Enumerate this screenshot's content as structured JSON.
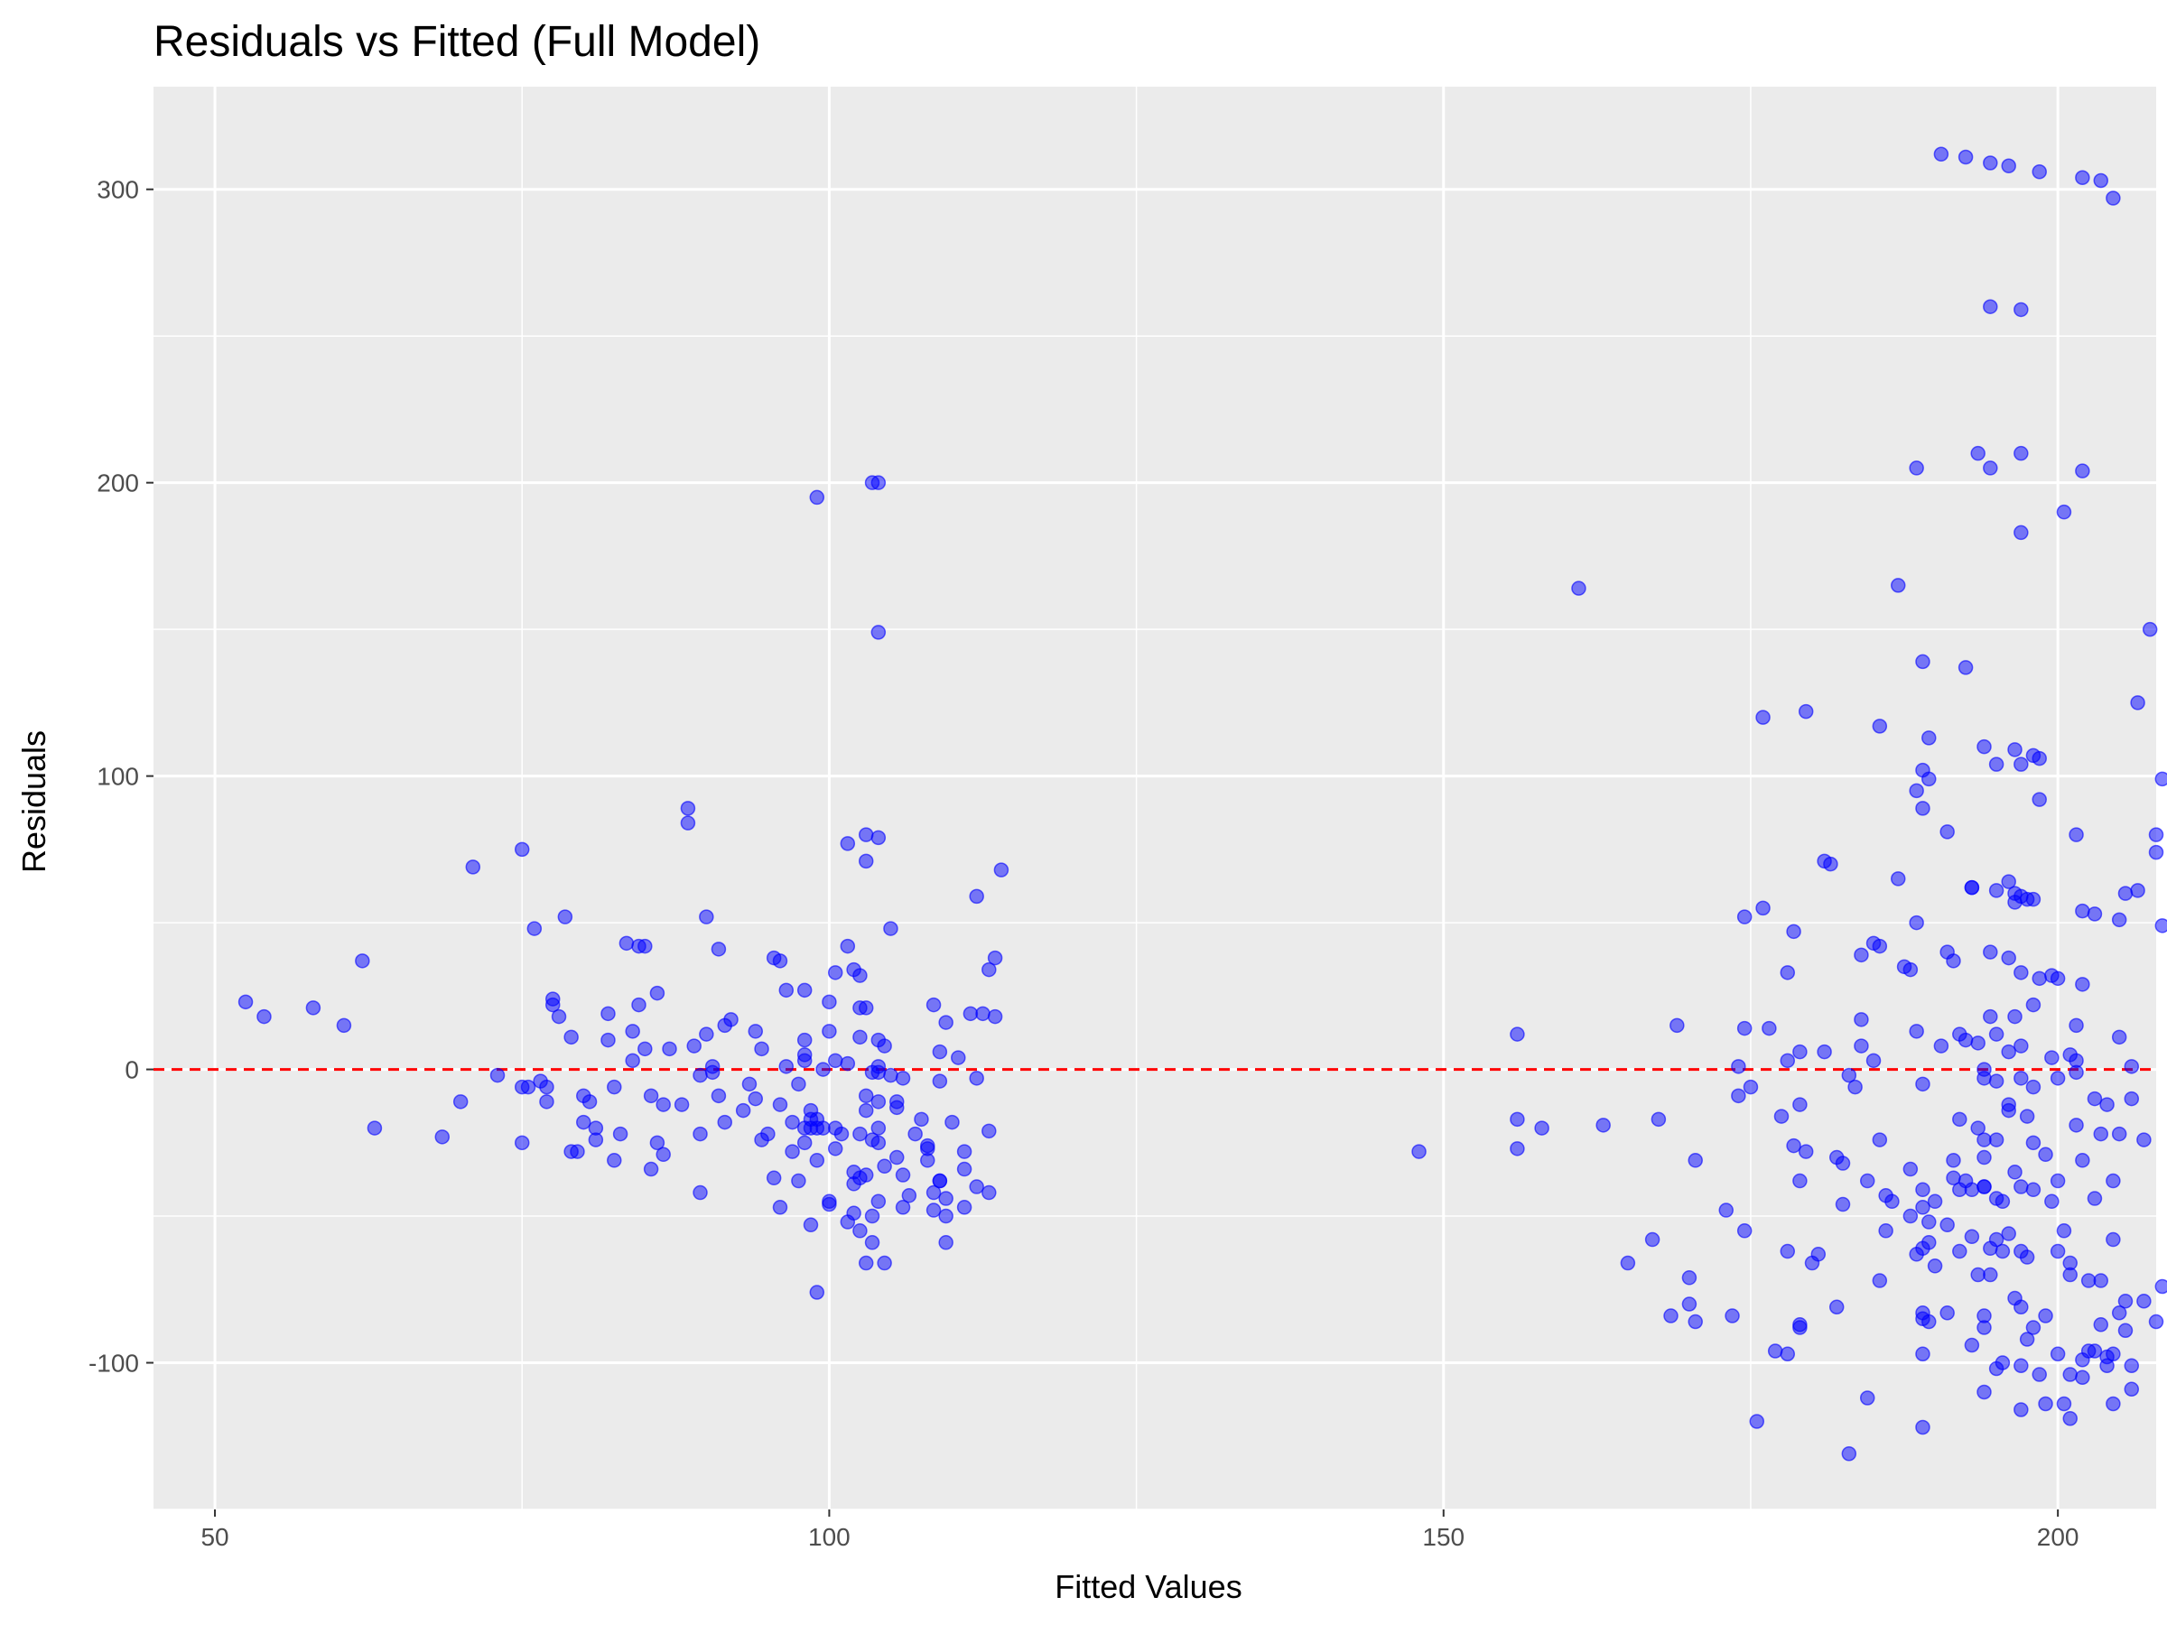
{
  "chart_data": {
    "type": "scatter",
    "title": "Residuals vs Fitted (Full Model)",
    "xlabel": "Fitted Values",
    "ylabel": "Residuals",
    "xlim": [
      45,
      208
    ],
    "ylim": [
      -150,
      335
    ],
    "x_ticks": [
      50,
      100,
      150,
      200
    ],
    "x_tick_labels": [
      "50",
      "100",
      "150",
      "200"
    ],
    "y_ticks": [
      -100,
      0,
      100,
      200,
      300
    ],
    "y_tick_labels": [
      "-100",
      "0",
      "100",
      "200",
      "300"
    ],
    "grid": true,
    "reference_line": {
      "y": 0,
      "style": "dashed",
      "color": "#ff0000"
    },
    "colors": {
      "panel": "#ebebeb",
      "grid": "#ffffff",
      "points": "#0000ff"
    },
    "points": [
      [
        52.5,
        23
      ],
      [
        54,
        18
      ],
      [
        58,
        21
      ],
      [
        60.5,
        15
      ],
      [
        62,
        37
      ],
      [
        63,
        -20
      ],
      [
        68.5,
        -23
      ],
      [
        70,
        -11
      ],
      [
        71,
        69
      ],
      [
        73,
        -2
      ],
      [
        75,
        75
      ],
      [
        75,
        -6
      ],
      [
        75,
        -25
      ],
      [
        75.5,
        -6
      ],
      [
        76,
        48
      ],
      [
        76.5,
        -4
      ],
      [
        77,
        -6
      ],
      [
        77,
        -11
      ],
      [
        77.5,
        22
      ],
      [
        77.5,
        24
      ],
      [
        78,
        18
      ],
      [
        78.5,
        52
      ],
      [
        79,
        11
      ],
      [
        79,
        -28
      ],
      [
        79.5,
        -28
      ],
      [
        80,
        -9
      ],
      [
        80,
        -18
      ],
      [
        80.5,
        -11
      ],
      [
        81,
        -24
      ],
      [
        81,
        -20
      ],
      [
        82,
        10
      ],
      [
        82,
        19
      ],
      [
        82.5,
        -31
      ],
      [
        82.5,
        -6
      ],
      [
        83,
        -22
      ],
      [
        83.5,
        43
      ],
      [
        84,
        13
      ],
      [
        84,
        3
      ],
      [
        84.5,
        22
      ],
      [
        84.5,
        42
      ],
      [
        85,
        7
      ],
      [
        85,
        42
      ],
      [
        85.5,
        -34
      ],
      [
        85.5,
        -9
      ],
      [
        86,
        26
      ],
      [
        86,
        -25
      ],
      [
        86.5,
        -12
      ],
      [
        86.5,
        -29
      ],
      [
        87,
        7
      ],
      [
        88,
        -12
      ],
      [
        88.5,
        89
      ],
      [
        88.5,
        84
      ],
      [
        89,
        8
      ],
      [
        89.5,
        -2
      ],
      [
        89.5,
        -42
      ],
      [
        89.5,
        -22
      ],
      [
        90,
        52
      ],
      [
        90,
        12
      ],
      [
        90.5,
        -1
      ],
      [
        90.5,
        1
      ],
      [
        91,
        41
      ],
      [
        91,
        -9
      ],
      [
        91.5,
        15
      ],
      [
        91.5,
        -18
      ],
      [
        92,
        17
      ],
      [
        93,
        -14
      ],
      [
        93.5,
        -5
      ],
      [
        94,
        13
      ],
      [
        94,
        -10
      ],
      [
        94.5,
        7
      ],
      [
        94.5,
        -24
      ],
      [
        95,
        -22
      ],
      [
        95.5,
        38
      ],
      [
        95.5,
        -37
      ],
      [
        96,
        37
      ],
      [
        96,
        -12
      ],
      [
        96,
        -47
      ],
      [
        96.5,
        27
      ],
      [
        96.5,
        1
      ],
      [
        97,
        -18
      ],
      [
        97,
        -28
      ],
      [
        97.5,
        -5
      ],
      [
        97.5,
        -38
      ],
      [
        98,
        27
      ],
      [
        98,
        10
      ],
      [
        98,
        5
      ],
      [
        98,
        3
      ],
      [
        98,
        -25
      ],
      [
        98,
        -20
      ],
      [
        98.5,
        -53
      ],
      [
        98.5,
        -14
      ],
      [
        98.5,
        -17
      ],
      [
        98.5,
        -20
      ],
      [
        99,
        195
      ],
      [
        99,
        -20
      ],
      [
        99,
        -17
      ],
      [
        99,
        -31
      ],
      [
        99,
        -76
      ],
      [
        99.5,
        0
      ],
      [
        99.5,
        -20
      ],
      [
        100,
        -45
      ],
      [
        100,
        -46
      ],
      [
        100,
        23
      ],
      [
        100,
        13
      ],
      [
        100.5,
        33
      ],
      [
        100.5,
        3
      ],
      [
        100.5,
        -27
      ],
      [
        100.5,
        -20
      ],
      [
        101,
        -22
      ],
      [
        101.5,
        77
      ],
      [
        101.5,
        42
      ],
      [
        101.5,
        2
      ],
      [
        101.5,
        -52
      ],
      [
        102,
        34
      ],
      [
        102,
        -35
      ],
      [
        102,
        -39
      ],
      [
        102,
        -49
      ],
      [
        102.5,
        21
      ],
      [
        102.5,
        32
      ],
      [
        102.5,
        11
      ],
      [
        102.5,
        -22
      ],
      [
        102.5,
        -37
      ],
      [
        102.5,
        -55
      ],
      [
        103,
        80
      ],
      [
        103,
        71
      ],
      [
        103,
        21
      ],
      [
        103,
        -9
      ],
      [
        103,
        -14
      ],
      [
        103,
        -36
      ],
      [
        103,
        -66
      ],
      [
        103.5,
        200
      ],
      [
        103.5,
        -1
      ],
      [
        103.5,
        -24
      ],
      [
        103.5,
        -50
      ],
      [
        103.5,
        -59
      ],
      [
        104,
        200
      ],
      [
        104,
        149
      ],
      [
        104,
        79
      ],
      [
        104,
        10
      ],
      [
        104,
        1
      ],
      [
        104,
        -1
      ],
      [
        104,
        -11
      ],
      [
        104,
        -20
      ],
      [
        104,
        -25
      ],
      [
        104,
        -45
      ],
      [
        104.5,
        8
      ],
      [
        104.5,
        -33
      ],
      [
        104.5,
        -66
      ],
      [
        105,
        48
      ],
      [
        105,
        -2
      ],
      [
        105.5,
        -11
      ],
      [
        105.5,
        -13
      ],
      [
        105.5,
        -30
      ],
      [
        106,
        -3
      ],
      [
        106,
        -36
      ],
      [
        106,
        -47
      ],
      [
        106.5,
        -43
      ],
      [
        107,
        -22
      ],
      [
        107.5,
        -17
      ],
      [
        108,
        -27
      ],
      [
        108,
        -31
      ],
      [
        108,
        -26
      ],
      [
        108.5,
        -42
      ],
      [
        108.5,
        22
      ],
      [
        108.5,
        -48
      ],
      [
        109,
        6
      ],
      [
        109,
        -4
      ],
      [
        109,
        -38
      ],
      [
        109,
        -38
      ],
      [
        109.5,
        -44
      ],
      [
        109.5,
        -50
      ],
      [
        109.5,
        -59
      ],
      [
        109.5,
        16
      ],
      [
        110,
        -18
      ],
      [
        110.5,
        4
      ],
      [
        111,
        -34
      ],
      [
        111,
        -28
      ],
      [
        111,
        -47
      ],
      [
        111.5,
        19
      ],
      [
        112,
        -3
      ],
      [
        112,
        -40
      ],
      [
        112,
        59
      ],
      [
        112.5,
        19
      ],
      [
        113,
        34
      ],
      [
        113,
        -21
      ],
      [
        113,
        -42
      ],
      [
        113.5,
        38
      ],
      [
        113.5,
        18
      ],
      [
        114,
        68
      ],
      [
        148,
        -28
      ],
      [
        156,
        12
      ],
      [
        156,
        -17
      ],
      [
        156,
        -27
      ],
      [
        158,
        -20
      ],
      [
        161,
        164
      ],
      [
        163,
        -19
      ],
      [
        165,
        -66
      ],
      [
        167,
        -58
      ],
      [
        167.5,
        -17
      ],
      [
        168.5,
        -84
      ],
      [
        169,
        15
      ],
      [
        170,
        -80
      ],
      [
        170,
        -71
      ],
      [
        170.5,
        -86
      ],
      [
        170.5,
        -31
      ],
      [
        173,
        -48
      ],
      [
        173.5,
        -84
      ],
      [
        174,
        1
      ],
      [
        174,
        -9
      ],
      [
        174.5,
        -55
      ],
      [
        174.5,
        52
      ],
      [
        174.5,
        14
      ],
      [
        175,
        -6
      ],
      [
        175.5,
        -120
      ],
      [
        176,
        120
      ],
      [
        176,
        55
      ],
      [
        176.5,
        14
      ],
      [
        177,
        -96
      ],
      [
        177.5,
        -16
      ],
      [
        178,
        -97
      ],
      [
        178,
        33
      ],
      [
        178,
        3
      ],
      [
        178,
        -62
      ],
      [
        178.5,
        -26
      ],
      [
        178.5,
        47
      ],
      [
        179,
        -88
      ],
      [
        179,
        6
      ],
      [
        179,
        -12
      ],
      [
        179,
        -38
      ],
      [
        179,
        -87
      ],
      [
        179.5,
        122
      ],
      [
        179.5,
        -28
      ],
      [
        180,
        -66
      ],
      [
        180.5,
        -63
      ],
      [
        181,
        6
      ],
      [
        181,
        71
      ],
      [
        181.5,
        70
      ],
      [
        182,
        -30
      ],
      [
        182,
        -81
      ],
      [
        182.5,
        -32
      ],
      [
        182.5,
        -46
      ],
      [
        183,
        -2
      ],
      [
        183,
        -131
      ],
      [
        183.5,
        -6
      ],
      [
        184,
        17
      ],
      [
        184,
        39
      ],
      [
        184,
        8
      ],
      [
        184.5,
        -112
      ],
      [
        184.5,
        -38
      ],
      [
        185,
        43
      ],
      [
        185,
        3
      ],
      [
        185.5,
        117
      ],
      [
        185.5,
        -72
      ],
      [
        185.5,
        42
      ],
      [
        185.5,
        -24
      ],
      [
        186,
        -43
      ],
      [
        186,
        -55
      ],
      [
        186.5,
        -45
      ],
      [
        187,
        165
      ],
      [
        187,
        65
      ],
      [
        187.5,
        35
      ],
      [
        188,
        34
      ],
      [
        188,
        -50
      ],
      [
        188,
        -34
      ],
      [
        188.5,
        -63
      ],
      [
        188.5,
        205
      ],
      [
        188.5,
        95
      ],
      [
        188.5,
        50
      ],
      [
        188.5,
        13
      ],
      [
        189,
        102
      ],
      [
        189,
        89
      ],
      [
        189,
        139
      ],
      [
        189,
        -5
      ],
      [
        189,
        -41
      ],
      [
        189,
        -47
      ],
      [
        189,
        -61
      ],
      [
        189,
        -83
      ],
      [
        189,
        -85
      ],
      [
        189,
        -97
      ],
      [
        189,
        -122
      ],
      [
        189.5,
        113
      ],
      [
        189.5,
        99
      ],
      [
        189.5,
        -52
      ],
      [
        189.5,
        -59
      ],
      [
        189.5,
        -86
      ],
      [
        190,
        -67
      ],
      [
        190,
        -45
      ],
      [
        190.5,
        312
      ],
      [
        190.5,
        8
      ],
      [
        191,
        81
      ],
      [
        191,
        -53
      ],
      [
        191,
        -83
      ],
      [
        191,
        40
      ],
      [
        191.5,
        37
      ],
      [
        191.5,
        -31
      ],
      [
        191.5,
        -37
      ],
      [
        192,
        12
      ],
      [
        192,
        -17
      ],
      [
        192,
        -41
      ],
      [
        192,
        -62
      ],
      [
        192.5,
        311
      ],
      [
        192.5,
        137
      ],
      [
        192.5,
        10
      ],
      [
        192.5,
        -38
      ],
      [
        193,
        62
      ],
      [
        193,
        62
      ],
      [
        193,
        -41
      ],
      [
        193,
        -57
      ],
      [
        193,
        -94
      ],
      [
        193.5,
        210
      ],
      [
        193.5,
        -20
      ],
      [
        193.5,
        -70
      ],
      [
        193.5,
        9
      ],
      [
        194,
        110
      ],
      [
        194,
        -84
      ],
      [
        194,
        -88
      ],
      [
        194,
        -110
      ],
      [
        194,
        0
      ],
      [
        194,
        -3
      ],
      [
        194,
        -24
      ],
      [
        194,
        -30
      ],
      [
        194,
        -40
      ],
      [
        194,
        -40
      ],
      [
        194.5,
        309
      ],
      [
        194.5,
        260
      ],
      [
        194.5,
        205
      ],
      [
        194.5,
        40
      ],
      [
        194.5,
        18
      ],
      [
        194.5,
        -61
      ],
      [
        194.5,
        -70
      ],
      [
        195,
        104
      ],
      [
        195,
        61
      ],
      [
        195,
        12
      ],
      [
        195,
        -4
      ],
      [
        195,
        -24
      ],
      [
        195,
        -44
      ],
      [
        195,
        -58
      ],
      [
        195,
        -102
      ],
      [
        195.5,
        -45
      ],
      [
        195.5,
        -62
      ],
      [
        195.5,
        -100
      ],
      [
        196,
        308
      ],
      [
        196,
        64
      ],
      [
        196,
        38
      ],
      [
        196,
        6
      ],
      [
        196,
        -12
      ],
      [
        196,
        -14
      ],
      [
        196,
        -56
      ],
      [
        196.5,
        109
      ],
      [
        196.5,
        60
      ],
      [
        196.5,
        57
      ],
      [
        196.5,
        -35
      ],
      [
        196.5,
        18
      ],
      [
        196.5,
        -78
      ],
      [
        197,
        259
      ],
      [
        197,
        210
      ],
      [
        197,
        183
      ],
      [
        197,
        104
      ],
      [
        197,
        59
      ],
      [
        197,
        33
      ],
      [
        197,
        8
      ],
      [
        197,
        -3
      ],
      [
        197,
        -40
      ],
      [
        197,
        -62
      ],
      [
        197,
        -81
      ],
      [
        197,
        -101
      ],
      [
        197,
        -116
      ],
      [
        197.5,
        58
      ],
      [
        197.5,
        -16
      ],
      [
        197.5,
        -64
      ],
      [
        197.5,
        -92
      ],
      [
        198,
        107
      ],
      [
        198,
        58
      ],
      [
        198,
        22
      ],
      [
        198,
        -6
      ],
      [
        198,
        -25
      ],
      [
        198,
        -41
      ],
      [
        198,
        -88
      ],
      [
        198.5,
        306
      ],
      [
        198.5,
        106
      ],
      [
        198.5,
        92
      ],
      [
        198.5,
        31
      ],
      [
        198.5,
        -104
      ],
      [
        199,
        -114
      ],
      [
        199,
        -29
      ],
      [
        199,
        -84
      ],
      [
        199.5,
        32
      ],
      [
        199.5,
        4
      ],
      [
        199.5,
        -45
      ],
      [
        200,
        -3
      ],
      [
        200,
        -38
      ],
      [
        200,
        -62
      ],
      [
        200,
        -97
      ],
      [
        200,
        31
      ],
      [
        200.5,
        190
      ],
      [
        200.5,
        -55
      ],
      [
        200.5,
        -114
      ],
      [
        201,
        -104
      ],
      [
        201,
        -119
      ],
      [
        201,
        5
      ],
      [
        201,
        -70
      ],
      [
        201,
        -66
      ],
      [
        201.5,
        80
      ],
      [
        201.5,
        15
      ],
      [
        201.5,
        3
      ],
      [
        201.5,
        -1
      ],
      [
        201.5,
        -19
      ],
      [
        202,
        304
      ],
      [
        202,
        204
      ],
      [
        202,
        54
      ],
      [
        202,
        29
      ],
      [
        202,
        -105
      ],
      [
        202,
        -31
      ],
      [
        202,
        -99
      ],
      [
        202.5,
        -96
      ],
      [
        202.5,
        -72
      ],
      [
        203,
        -44
      ],
      [
        203,
        -10
      ],
      [
        203,
        -96
      ],
      [
        203,
        53
      ],
      [
        203.5,
        303
      ],
      [
        203.5,
        -87
      ],
      [
        203.5,
        -22
      ],
      [
        203.5,
        -72
      ],
      [
        204,
        -12
      ],
      [
        204,
        -98
      ],
      [
        204,
        -101
      ],
      [
        204.5,
        297
      ],
      [
        204.5,
        -114
      ],
      [
        204.5,
        -58
      ],
      [
        204.5,
        -97
      ],
      [
        204.5,
        -38
      ],
      [
        205,
        11
      ],
      [
        205,
        -22
      ],
      [
        205,
        -83
      ],
      [
        205,
        51
      ],
      [
        205.5,
        -89
      ],
      [
        205.5,
        -79
      ],
      [
        205.5,
        60
      ],
      [
        206,
        -101
      ],
      [
        206,
        1
      ],
      [
        206,
        -10
      ],
      [
        206,
        -109
      ],
      [
        206.5,
        125
      ],
      [
        206.5,
        61
      ],
      [
        207,
        -79
      ],
      [
        207,
        -24
      ],
      [
        207.5,
        150
      ],
      [
        208,
        -86
      ],
      [
        208,
        80
      ],
      [
        208,
        74
      ],
      [
        208.5,
        49
      ],
      [
        208.5,
        99
      ],
      [
        208.5,
        -74
      ]
    ]
  }
}
